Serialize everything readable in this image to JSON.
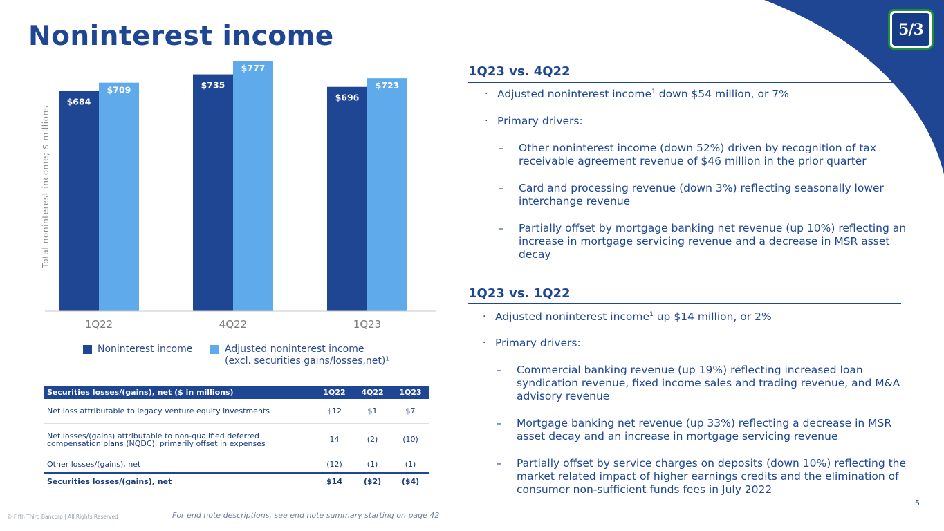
{
  "title": "Noninterest income",
  "logo": {
    "text": "5/3"
  },
  "colors": {
    "navy": "#1e4693",
    "light_blue": "#5eaaea",
    "green": "#1f8f3a"
  },
  "chart_data": {
    "type": "bar",
    "categories": [
      "1Q22",
      "4Q22",
      "1Q23"
    ],
    "series": [
      {
        "name": "Noninterest income",
        "values": [
          684,
          735,
          696
        ],
        "labels": [
          "$684",
          "$735",
          "$696"
        ],
        "color": "#1e4693"
      },
      {
        "name": "Adjusted noninterest income (excl. securities gains/losses,net)¹",
        "values": [
          709,
          777,
          723
        ],
        "labels": [
          "$709",
          "$777",
          "$723"
        ],
        "color": "#5eaaea"
      }
    ],
    "ylabel": "Total noninterest income; $ millions",
    "ylim": [
      0,
      777
    ],
    "grid": false
  },
  "legend": {
    "item1": "Noninterest income",
    "item2_line1": "Adjusted noninterest income",
    "item2_line2": "(excl. securities gains/losses,net)¹"
  },
  "table": {
    "header": [
      "Securities losses/(gains), net ($ in millions)",
      "1Q22",
      "4Q22",
      "1Q23"
    ],
    "rows": [
      [
        "Net loss attributable to legacy venture equity investments",
        "$12",
        "$1",
        "$7"
      ],
      [
        "Net losses/(gains) attributable to non-qualified deferred compensation plans (NQDC), primarily offset in expenses",
        "14",
        "(2)",
        "(10)"
      ],
      [
        "Other losses/(gains), net",
        "(12)",
        "(1)",
        "(1)"
      ],
      [
        "Securities losses/(gains), net",
        "$14",
        "($2)",
        "($4)"
      ]
    ]
  },
  "sections": [
    {
      "heading": "1Q23 vs. 4Q22",
      "bullet1_pre": "Adjusted noninterest income",
      "bullet1_sup": "1",
      "bullet1_post": " down $54 million, or 7%",
      "bullet2": "Primary drivers:",
      "dashes": [
        "Other noninterest income (down 52%) driven by recognition of tax receivable agreement revenue of $46 million in the prior quarter",
        "Card and processing revenue (down 3%) reflecting seasonally lower interchange revenue",
        "Partially offset by mortgage banking net revenue (up 10%) reflecting an increase in mortgage servicing revenue and a decrease in MSR asset decay"
      ]
    },
    {
      "heading": "1Q23 vs. 1Q22",
      "bullet1_pre": "Adjusted noninterest income",
      "bullet1_sup": "1",
      "bullet1_post": " up $14 million, or 2%",
      "bullet2": "Primary drivers:",
      "dashes": [
        "Commercial banking revenue (up 19%) reflecting increased loan syndication revenue, fixed income sales and trading revenue, and M&A advisory revenue",
        "Mortgage banking net revenue (up 33%) reflecting a decrease in MSR asset decay and an increase in mortgage servicing revenue",
        "Partially offset by service charges on deposits (down 10%) reflecting the market related impact of higher earnings credits and the elimination of consumer non-sufficient funds fees in July 2022"
      ]
    }
  ],
  "marks": {
    "bullet": "·",
    "dash": "–"
  },
  "footer": {
    "copyright": "© Fifth Third Bancorp | All Rights Reserved",
    "note": "For end note descriptions, see end note summary starting on page 42",
    "page": "5"
  }
}
